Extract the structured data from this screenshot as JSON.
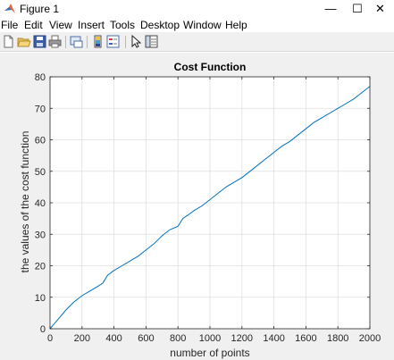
{
  "window": {
    "title": "Figure 1",
    "minimize": "—",
    "maximize": "☐",
    "close": "✕"
  },
  "menu": {
    "items": [
      "File",
      "Edit",
      "View",
      "Insert",
      "Tools",
      "Desktop",
      "Window",
      "Help"
    ]
  },
  "toolbar": {
    "buttons": [
      "new-file-icon",
      "open-folder-icon",
      "save-icon",
      "print-icon",
      "link-figure-icon",
      "insert-colorbar-icon",
      "insert-legend-icon",
      "edit-plot-icon",
      "property-inspector-icon"
    ]
  },
  "chart_data": {
    "type": "line",
    "title": "Cost Function",
    "xlabel": "number of points",
    "ylabel": "the values of the cost function",
    "xlim": [
      0,
      2000
    ],
    "ylim": [
      0,
      80
    ],
    "xticks": [
      0,
      200,
      400,
      600,
      800,
      1000,
      1200,
      1400,
      1600,
      1800,
      2000
    ],
    "yticks": [
      0,
      10,
      20,
      30,
      40,
      50,
      60,
      70,
      80
    ],
    "grid": true,
    "color": "#0072bd",
    "series": [
      {
        "x": [
          0,
          25,
          50,
          100,
          150,
          200,
          250,
          300,
          330,
          360,
          400,
          450,
          500,
          550,
          600,
          650,
          700,
          750,
          800,
          830,
          860,
          900,
          950,
          1000,
          1050,
          1100,
          1150,
          1200,
          1250,
          1300,
          1350,
          1400,
          1450,
          1500,
          1550,
          1600,
          1650,
          1700,
          1750,
          1800,
          1850,
          1900,
          1950,
          2000
        ],
        "y": [
          0,
          1.5,
          3,
          6,
          8.5,
          10.5,
          12,
          13.5,
          14.5,
          17,
          18.5,
          20,
          21.5,
          23,
          25,
          27,
          29.5,
          31.5,
          32.5,
          35,
          36,
          37.5,
          39,
          41,
          43,
          45,
          46.5,
          48,
          50,
          52,
          54,
          56,
          58,
          59.5,
          61.5,
          63.5,
          65.5,
          67,
          68.5,
          70,
          71.5,
          73,
          75,
          77
        ]
      }
    ]
  }
}
